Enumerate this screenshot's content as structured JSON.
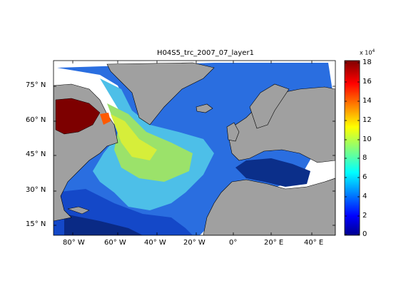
{
  "title": "H04S5_trc_2007_07_layer1",
  "lat_ticks": [
    "75° N",
    "60° N",
    "45° N",
    "30° N",
    "15° N"
  ],
  "lon_ticks": [
    "80° W",
    "60° W",
    "40° W",
    "20° W",
    "0°",
    "20° E",
    "40° E"
  ],
  "colorbar": {
    "multiplier": "x 10",
    "exponent": "4",
    "ticks": [
      "18",
      "16",
      "14",
      "12",
      "10",
      "8",
      "6",
      "4",
      "2",
      "0"
    ],
    "colormap": "jet",
    "range": [
      0,
      180000
    ]
  },
  "colors": {
    "land": "#a0a0a0",
    "deep_ocean": "#0b2f8a",
    "high_value": "#7d0000"
  }
}
